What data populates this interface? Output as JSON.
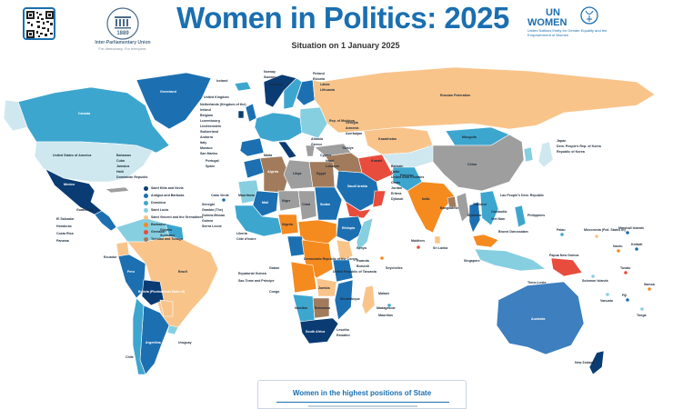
{
  "header": {
    "title": "Women in Politics: 2025",
    "subtitle": "Situation on 1 January 2025"
  },
  "ipu": {
    "year": "1889",
    "name": "Inter-Parliamentary Union",
    "tagline": "For democracy. For everyone."
  },
  "un_women": {
    "logo_text_1": "UN",
    "logo_text_2": "WOMEN",
    "description": "United Nations Entity for Gender Equality and the Empowerment of Women"
  },
  "icons": {
    "qr": "qr-code-icon",
    "ipu_emblem": "ipu-emblem-icon",
    "un_women_emblem": "un-women-emblem-icon"
  },
  "colors": {
    "title": "#1a6fb0",
    "ocean": "#ffffff",
    "cat_1": "#0a3b73",
    "cat_2": "#1c70b2",
    "cat_3": "#3da6cf",
    "cat_4": "#86cfe0",
    "cat_5": "#cfe8ef",
    "cat_6": "#f9c48a",
    "cat_7": "#f58a1f",
    "cat_8": "#e84c3d",
    "cat_9": "#a17b5b",
    "cat_10": "#9e9e9e"
  },
  "legend": [
    {
      "label": "Saint Kitts and Nevis",
      "color": "#0a3b73"
    },
    {
      "label": "Antigua and Barbuda",
      "color": "#1c70b2"
    },
    {
      "label": "Dominica",
      "color": "#3da6cf"
    },
    {
      "label": "Saint Lucia",
      "color": "#86cfe0"
    },
    {
      "label": "Saint Vincent and the Grenadines",
      "color": "#f9c48a"
    },
    {
      "label": "Barbados",
      "color": "#f58a1f"
    },
    {
      "label": "Grenada",
      "color": "#e84c3d"
    },
    {
      "label": "Trinidad and Tobago",
      "color": "#a17b5b"
    }
  ],
  "countries": {
    "canada": "Canada",
    "usa": "United States of America",
    "greenland": "Greenland",
    "mexico": "Mexico",
    "brazil": "Brazil",
    "peru": "Peru",
    "bolivia": "Bolivia (Plurinational State of)",
    "argentina": "Argentina",
    "chile": "Chile",
    "uruguay": "Uruguay",
    "el_salvador": "El Salvador",
    "honduras": "Honduras",
    "costa_rica": "Costa Rica",
    "panama": "Panama",
    "guatemala": "Guatemala",
    "ecuador": "Ecuador",
    "bahamas": "Bahamas",
    "cuba": "Cuba",
    "jamaica": "Jamaica",
    "haiti": "Haiti",
    "dominican_republic": "Dominican Republic",
    "guyana": "Guyana",
    "suriname": "Suriname",
    "russia": "Russian Federation",
    "kazakhstan": "Kazakhstan",
    "mongolia": "Mongolia",
    "china": "China",
    "india": "India",
    "japan": "Japan",
    "dprk": "Dem. People's Rep. of Korea",
    "rok": "Republic of Korea",
    "iceland": "Iceland",
    "uk": "United Kingdom",
    "norway": "Norway",
    "sweden": "Sweden",
    "finland": "Finland",
    "estonia": "Estonia",
    "latvia": "Latvia",
    "lithuania": "Lithuania",
    "denmark": "Denmark",
    "ireland": "Ireland",
    "netherlands": "Netherlands (Kingdom of the)",
    "belgium": "Belgium",
    "luxembourg": "Luxembourg",
    "liechtenstein": "Liechtenstein",
    "switzerland": "Switzerland",
    "andorra": "Andorra",
    "italy": "Italy",
    "monaco": "Monaco",
    "san_marino": "San Marino",
    "portugal": "Portugal",
    "spain": "Spain",
    "malta": "Malta",
    "moldova": "Rep. of Moldova",
    "georgia": "Georgia",
    "armenia": "Armenia",
    "azerbaijan": "Azerbaijan",
    "albania": "Albania",
    "greece": "Greece",
    "cyprus": "Cyprus",
    "turkiye": "Türkiye",
    "israel": "Israel",
    "lebanon": "Lebanon",
    "kuwait": "Kuwait",
    "bahrain": "Bahrain",
    "qatar": "Qatar",
    "uae": "United Arab Emirates",
    "oman": "Oman",
    "jordan": "Jordan",
    "eritrea": "Eritrea",
    "djibouti": "Djibouti",
    "pakistan": "Pakistan",
    "bangladesh": "Bangladesh",
    "sri_lanka": "Sri Lanka",
    "maldives": "Maldives",
    "myanmar": "Myanmar",
    "lao": "Lao People's Dem. Republic",
    "thailand": "Thailand",
    "cambodia": "Cambodia",
    "viet_nam": "Viet Nam",
    "philippines": "Philippines",
    "brunei": "Brunei Darussalam",
    "singapore": "Singapore",
    "timor_leste": "Timor-Leste",
    "palau": "Palau",
    "micronesia": "Micronesia (Fed. States of)",
    "marshall": "Marshall Islands",
    "nauru": "Nauru",
    "kiribati": "Kiribati",
    "png": "Papua New Guinea",
    "solomon": "Solomon Islands",
    "tuvalu": "Tuvalu",
    "samoa": "Samoa",
    "tonga": "Tonga",
    "vanuatu": "Vanuatu",
    "fiji": "Fiji",
    "australia": "Australia",
    "new_zealand": "New Zealand",
    "cabo_verde": "Cabo Verde",
    "senegal": "Senegal",
    "gambia": "Gambia (The)",
    "guinea_bissau": "Guinea-Bissau",
    "guinea": "Guinea",
    "sierra_leone": "Sierra Leone",
    "liberia": "Liberia",
    "cote_divoire": "Côte d'Ivoire",
    "mauritania": "Mauritania",
    "algeria": "Algeria",
    "libya": "Libya",
    "egypt": "Egypt",
    "mali": "Mali",
    "niger": "Niger",
    "chad": "Chad",
    "sudan": "Sudan",
    "nigeria": "Nigeria",
    "ethiopia": "Ethiopia",
    "eq_guinea": "Equatorial Guinea",
    "sao_tome": "Sao Tome and Principe",
    "gabon": "Gabon",
    "congo": "Congo",
    "drc": "Democratic Republic of the Congo",
    "kenya": "Kenya",
    "rwanda": "Rwanda",
    "burundi": "Burundi",
    "tanzania": "United Republic of Tanzania",
    "seychelles": "Seychelles",
    "zambia": "Zambia",
    "malawi": "Malawi",
    "mozambique": "Mozambique",
    "madagascar": "Madagascar",
    "mauritius": "Mauritius",
    "botswana": "Botswana",
    "namibia": "Namibia",
    "south_africa": "South Africa",
    "lesotho": "Lesotho",
    "eswatini": "Eswatini",
    "saudi_arabia": "Saudi Arabia",
    "kuwait2": "Kuwait"
  },
  "bottom_panel": {
    "title": "Women in the highest positions of State"
  }
}
